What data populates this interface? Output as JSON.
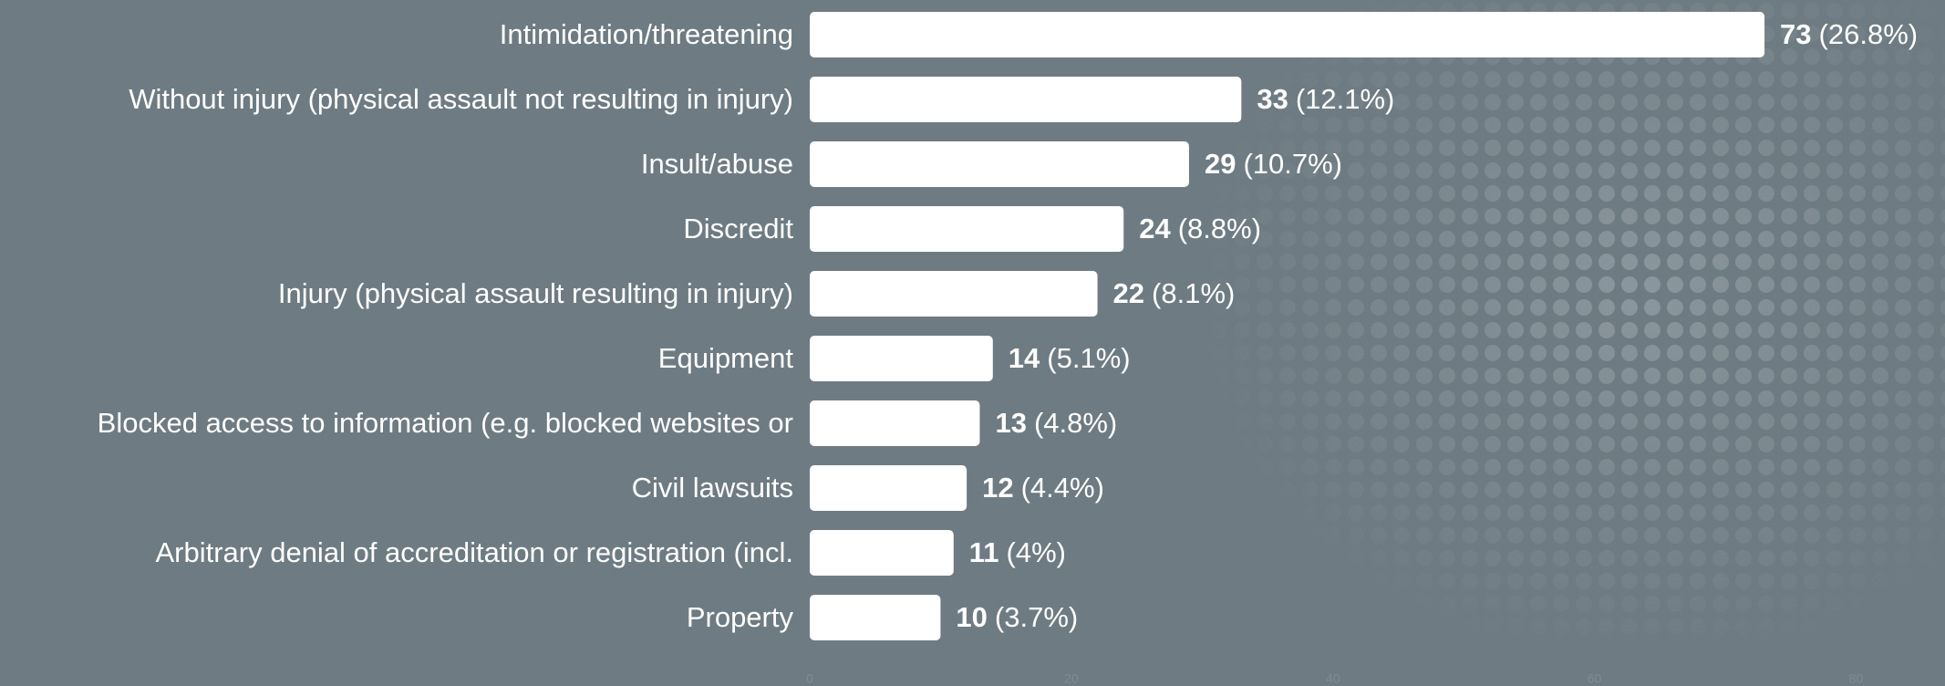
{
  "chart_data": {
    "type": "hbar",
    "categories": [
      "Intimidation/threatening",
      "Without injury (physical assault not resulting in injury)",
      "Insult/abuse",
      "Discredit",
      "Injury (physical assault resulting in injury)",
      "Equipment",
      "Blocked access to information (e.g. blocked websites or",
      "Civil lawsuits",
      "Arbitrary denial of accreditation or registration (incl.",
      "Property"
    ],
    "values": [
      73,
      33,
      29,
      24,
      22,
      14,
      13,
      12,
      11,
      10
    ],
    "percent_labels": [
      "(26.8%)",
      "(12.1%)",
      "(10.7%)",
      "(8.8%)",
      "(8.1%)",
      "(5.1%)",
      "(4.8%)",
      "(4.4%)",
      "(4%)",
      "(3.7%)"
    ],
    "color": "#ffffff",
    "xlim": [
      0,
      86.8
    ],
    "xticks": [
      0,
      20,
      40,
      60,
      80
    ]
  }
}
